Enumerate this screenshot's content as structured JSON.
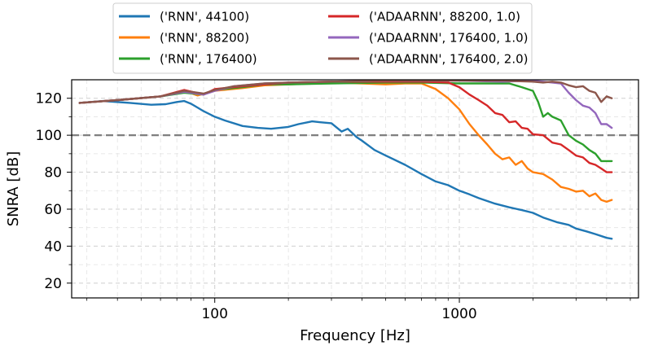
{
  "chart_data": {
    "type": "line",
    "xlabel": "Frequency [Hz]",
    "ylabel": "SNRA [dB]",
    "xscale": "log",
    "xlim": [
      26,
      5400
    ],
    "ylim": [
      12,
      130
    ],
    "x_ticks": [
      100,
      1000
    ],
    "x_tick_labels": [
      "100",
      "1000"
    ],
    "y_ticks": [
      20,
      40,
      60,
      80,
      100,
      120
    ],
    "y_tick_labels": [
      "20",
      "40",
      "60",
      "80",
      "100",
      "120"
    ],
    "grid": true,
    "legend_position": "top (outside, above axes, 2 columns)",
    "reference_line": {
      "y": 100,
      "style": "dashed",
      "color": "#7f7f7f"
    },
    "series": [
      {
        "name": "('RNN', 44100)",
        "color": "#1f77b4",
        "x": [
          28,
          35,
          45,
          55,
          63,
          70,
          75,
          80,
          85,
          90,
          100,
          110,
          130,
          150,
          170,
          200,
          220,
          250,
          270,
          300,
          330,
          350,
          380,
          400,
          450,
          500,
          600,
          700,
          800,
          900,
          1000,
          1100,
          1200,
          1400,
          1600,
          1800,
          2000,
          2200,
          2500,
          2800,
          3000,
          3300,
          3600,
          4000,
          4200
        ],
        "values": [
          117.5,
          118.5,
          117.5,
          116.5,
          116.8,
          118.0,
          118.5,
          117.0,
          115.0,
          113.0,
          110.0,
          108.0,
          105.0,
          104.0,
          103.5,
          104.5,
          106.0,
          107.5,
          107.0,
          106.5,
          102.0,
          103.5,
          99.0,
          97.0,
          92.0,
          89.0,
          84.0,
          79.0,
          75.0,
          73.0,
          70.0,
          68.0,
          66.0,
          63.0,
          61.0,
          59.5,
          58.0,
          55.5,
          53.0,
          51.5,
          49.5,
          48.0,
          46.5,
          44.5,
          44.0
        ]
      },
      {
        "name": "('RNN', 88200)",
        "color": "#ff7f0e",
        "x": [
          28,
          40,
          60,
          75,
          85,
          100,
          130,
          160,
          200,
          250,
          300,
          400,
          500,
          600,
          700,
          800,
          900,
          1000,
          1100,
          1200,
          1300,
          1400,
          1500,
          1600,
          1700,
          1800,
          1900,
          2000,
          2200,
          2400,
          2600,
          2800,
          3000,
          3200,
          3400,
          3600,
          3800,
          4000,
          4200
        ],
        "values": [
          117.5,
          119.0,
          121.0,
          124.0,
          121.5,
          124.0,
          125.5,
          127.0,
          127.5,
          128.0,
          128.5,
          128.0,
          127.5,
          128.0,
          128.0,
          125.0,
          120.0,
          114.0,
          106.0,
          100.0,
          95.0,
          90.0,
          87.0,
          88.0,
          84.0,
          86.0,
          82.0,
          80.0,
          79.0,
          76.0,
          72.0,
          71.0,
          69.5,
          70.0,
          67.0,
          68.5,
          65.0,
          64.0,
          65.0
        ]
      },
      {
        "name": "('RNN', 176400)",
        "color": "#2ca02c",
        "x": [
          28,
          40,
          60,
          75,
          90,
          100,
          130,
          160,
          200,
          300,
          500,
          700,
          1000,
          1300,
          1600,
          1800,
          2000,
          2100,
          2200,
          2300,
          2400,
          2600,
          2800,
          3000,
          3200,
          3400,
          3600,
          3800,
          4000,
          4200
        ],
        "values": [
          117.5,
          119.0,
          121.0,
          123.0,
          122.0,
          124.5,
          126.0,
          127.5,
          127.5,
          128.0,
          128.5,
          128.5,
          128.0,
          128.0,
          128.0,
          126.0,
          124.0,
          118.0,
          110.0,
          112.0,
          110.0,
          108.0,
          100.0,
          97.0,
          95.0,
          92.0,
          90.0,
          86.0,
          86.0,
          86.0
        ]
      },
      {
        "name": "('ADAARNN', 88200, 1.0)",
        "color": "#d62728",
        "x": [
          28,
          40,
          60,
          75,
          90,
          100,
          130,
          160,
          200,
          300,
          500,
          700,
          900,
          1000,
          1100,
          1200,
          1300,
          1400,
          1500,
          1600,
          1700,
          1800,
          1900,
          2000,
          2200,
          2400,
          2600,
          2800,
          3000,
          3200,
          3400,
          3600,
          3800,
          4000,
          4200
        ],
        "values": [
          117.5,
          119.0,
          121.0,
          124.5,
          122.0,
          125.0,
          126.5,
          127.5,
          128.5,
          129.0,
          129.0,
          129.0,
          128.5,
          126.0,
          122.0,
          119.0,
          116.0,
          112.0,
          111.0,
          107.0,
          107.5,
          104.0,
          103.5,
          100.5,
          100.0,
          96.0,
          95.0,
          92.0,
          89.0,
          88.0,
          85.0,
          84.0,
          82.0,
          80.0,
          80.0
        ]
      },
      {
        "name": "('ADAARNN', 176400, 1.0)",
        "color": "#9467bd",
        "x": [
          28,
          40,
          60,
          75,
          90,
          100,
          120,
          160,
          200,
          300,
          500,
          1000,
          1500,
          2000,
          2400,
          2600,
          2800,
          3000,
          3200,
          3400,
          3600,
          3800,
          4000,
          4200
        ],
        "values": [
          117.5,
          119.0,
          121.0,
          123.5,
          122.0,
          124.0,
          126.5,
          128.0,
          128.5,
          129.0,
          129.5,
          129.5,
          129.0,
          129.5,
          128.5,
          128.0,
          123.0,
          119.0,
          116.0,
          115.0,
          112.0,
          106.0,
          106.0,
          104.0
        ]
      },
      {
        "name": "('ADAARNN', 176400, 2.0)",
        "color": "#8c564b",
        "x": [
          28,
          40,
          60,
          75,
          90,
          100,
          120,
          160,
          200,
          300,
          500,
          1000,
          1500,
          2000,
          2200,
          2400,
          2600,
          2800,
          3000,
          3200,
          3400,
          3600,
          3800,
          4000,
          4200
        ],
        "values": [
          117.5,
          119.0,
          121.0,
          124.0,
          122.5,
          124.5,
          126.5,
          128.0,
          128.5,
          129.0,
          129.5,
          129.5,
          129.5,
          129.0,
          128.5,
          129.0,
          128.5,
          127.0,
          126.0,
          126.5,
          124.0,
          123.0,
          118.0,
          121.0,
          120.0
        ]
      }
    ]
  }
}
